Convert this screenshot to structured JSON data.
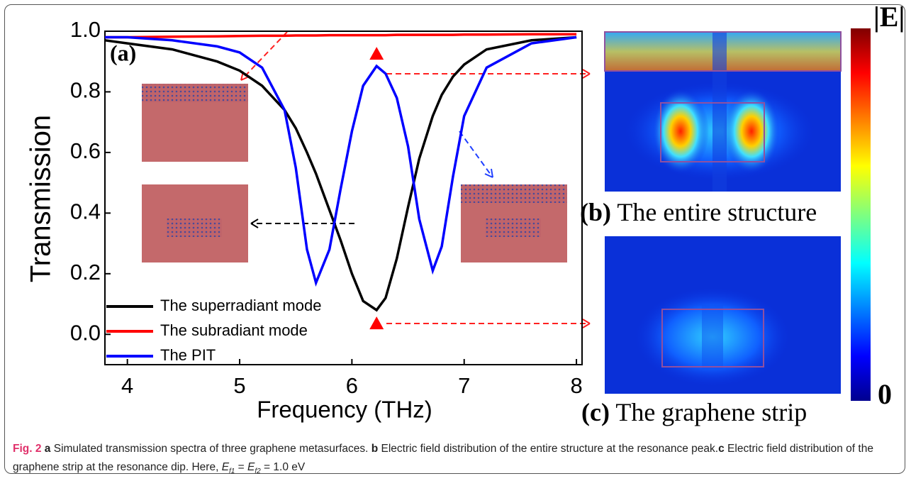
{
  "chart_data": {
    "type": "line",
    "xlabel": "Frequency (THz)",
    "ylabel": "Transmission",
    "panel_label": "(a)",
    "x": [
      3.8,
      4.0,
      4.4,
      4.8,
      5.0,
      5.2,
      5.4,
      5.5,
      5.6,
      5.68,
      5.8,
      5.9,
      6.0,
      6.1,
      6.22,
      6.3,
      6.4,
      6.5,
      6.6,
      6.72,
      6.8,
      6.9,
      7.0,
      7.2,
      7.6,
      8.0
    ],
    "series": [
      {
        "name": "The superradiant mode",
        "color": "#000000",
        "values": [
          0.97,
          0.96,
          0.94,
          0.9,
          0.87,
          0.82,
          0.74,
          0.68,
          0.6,
          0.53,
          0.41,
          0.31,
          0.2,
          0.11,
          0.08,
          0.12,
          0.25,
          0.42,
          0.58,
          0.72,
          0.79,
          0.85,
          0.89,
          0.94,
          0.97,
          0.98
        ]
      },
      {
        "name": "The subradiant mode",
        "color": "#ff0000",
        "values": [
          0.98,
          0.98,
          0.982,
          0.983,
          0.984,
          0.985,
          0.985,
          0.986,
          0.986,
          0.986,
          0.987,
          0.987,
          0.987,
          0.987,
          0.987,
          0.987,
          0.988,
          0.988,
          0.988,
          0.988,
          0.988,
          0.988,
          0.989,
          0.989,
          0.99,
          0.99
        ]
      },
      {
        "name": "The PIT",
        "color": "#0000ff",
        "values": [
          0.98,
          0.98,
          0.97,
          0.95,
          0.93,
          0.88,
          0.74,
          0.55,
          0.28,
          0.17,
          0.28,
          0.48,
          0.67,
          0.82,
          0.885,
          0.86,
          0.78,
          0.62,
          0.38,
          0.21,
          0.29,
          0.52,
          0.72,
          0.88,
          0.96,
          0.98
        ]
      }
    ],
    "xlim": [
      3.8,
      8.05
    ],
    "xticks": [
      4,
      5,
      6,
      7,
      8
    ],
    "ylim": [
      -0.1,
      1.0
    ],
    "yticks": [
      {
        "value": 0,
        "label": "0.0"
      },
      0.2,
      0.4,
      0.6,
      0.8,
      {
        "value": 1,
        "label": "1.0"
      }
    ],
    "legend": "lower left"
  },
  "panels": {
    "b": {
      "label": "(b)",
      "text": "The entire structure"
    },
    "c": {
      "label": "(c)",
      "text": "The graphene strip"
    },
    "colorbar": {
      "top": "|E|",
      "bottom": "0"
    }
  },
  "caption": {
    "label": "Fig. 2",
    "runs": [
      {
        "text": "a",
        "style": "b"
      },
      {
        "text": " Simulated transmission spectra of three graphene metasurfaces. ",
        "style": ""
      },
      {
        "text": "b",
        "style": "b"
      },
      {
        "text": " Electric field distribution of the entire structure at the resonance peak.",
        "style": ""
      },
      {
        "text": "c",
        "style": "b"
      },
      {
        "text": " Electric field distribution of the graphene strip at the resonance dip. Here, ",
        "style": ""
      },
      {
        "text": "E",
        "style": "i"
      },
      {
        "text": "f1",
        "style": "sub"
      },
      {
        "text": " = ",
        "style": ""
      },
      {
        "text": "E",
        "style": "i"
      },
      {
        "text": "f2",
        "style": "sub"
      },
      {
        "text": " = 1.0 eV",
        "style": ""
      }
    ]
  }
}
